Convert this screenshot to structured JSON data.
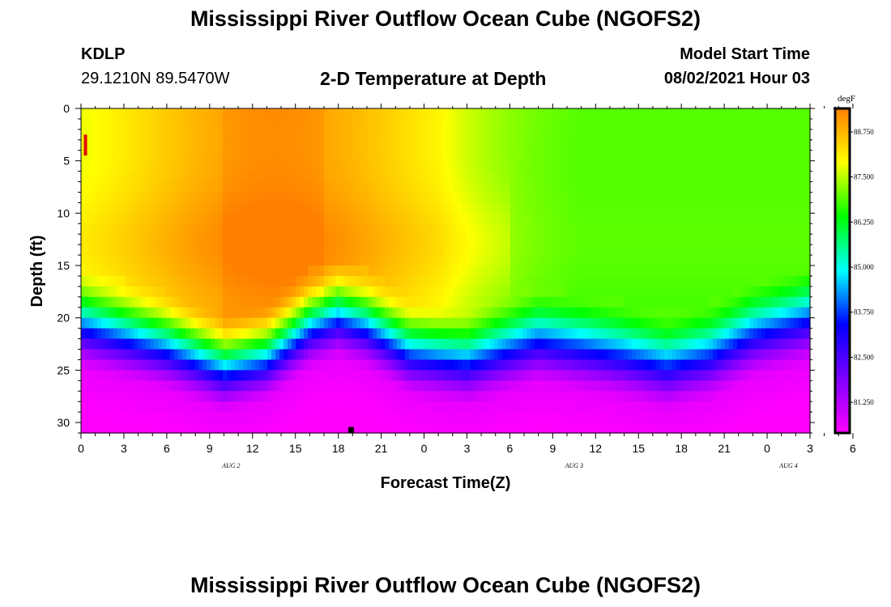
{
  "titles": {
    "top": "Mississippi River Outflow Ocean Cube (NGOFS2)",
    "bottom": "Mississippi River Outflow Ocean Cube (NGOFS2)",
    "subtitle": "2-D Temperature at Depth"
  },
  "station": {
    "id": "KDLP",
    "coords": "29.1210N  89.5470W"
  },
  "model": {
    "label": "Model Start Time",
    "value": "08/02/2021 Hour 03"
  },
  "chart_data": {
    "type": "heatmap",
    "xlabel": "Forecast Time(Z)",
    "ylabel": "Depth (ft)",
    "x_hours": [
      0,
      51
    ],
    "y_depth_ft": [
      0,
      31
    ],
    "y_inverted": true,
    "x_tick_labels": [
      "0",
      "3",
      "6",
      "9",
      "12",
      "15",
      "18",
      "21",
      "0",
      "3",
      "6",
      "9",
      "12",
      "15",
      "18",
      "21",
      "0",
      "3",
      "6"
    ],
    "y_tick_labels": [
      "0",
      "5",
      "10",
      "15",
      "20",
      "25",
      "30"
    ],
    "date_labels": [
      {
        "text": "AUG 2",
        "hour": 10.5
      },
      {
        "text": "AUG 3",
        "hour": 34.5
      },
      {
        "text": "AUG 4",
        "hour": 49.5
      }
    ],
    "colorbar": {
      "unit": "degF",
      "min": 80.4,
      "max": 89.4,
      "tick_labels": [
        "88.750",
        "87.500",
        "86.250",
        "85.000",
        "83.750",
        "82.500",
        "81.250"
      ],
      "tick_values": [
        88.75,
        87.5,
        86.25,
        85.0,
        83.75,
        82.5,
        81.25
      ],
      "colors": [
        "#ff00ff",
        "#7f00ff",
        "#0000ff",
        "#00ffff",
        "#00ff00",
        "#ffff00",
        "#ff7f00"
      ]
    },
    "thermocline_depth_ft": {
      "hours": [
        0,
        6,
        10,
        13,
        16,
        18,
        20,
        23,
        27,
        32,
        38,
        41,
        44,
        47,
        51
      ],
      "depth": [
        21.5,
        23.5,
        25.5,
        24.5,
        21.5,
        20.5,
        21.5,
        24.0,
        25.0,
        23.0,
        24.5,
        25.5,
        24.5,
        22.5,
        21.0
      ]
    },
    "surface_warm_core": {
      "hours": [
        10,
        17
      ],
      "temperature_degF": 89.0
    },
    "markers": [
      {
        "kind": "red-bar",
        "hour": 0.2,
        "depth_from": 2.5,
        "depth_to": 4.5
      },
      {
        "kind": "black-square",
        "hour": 18.9,
        "depth": 30.7
      }
    ]
  }
}
